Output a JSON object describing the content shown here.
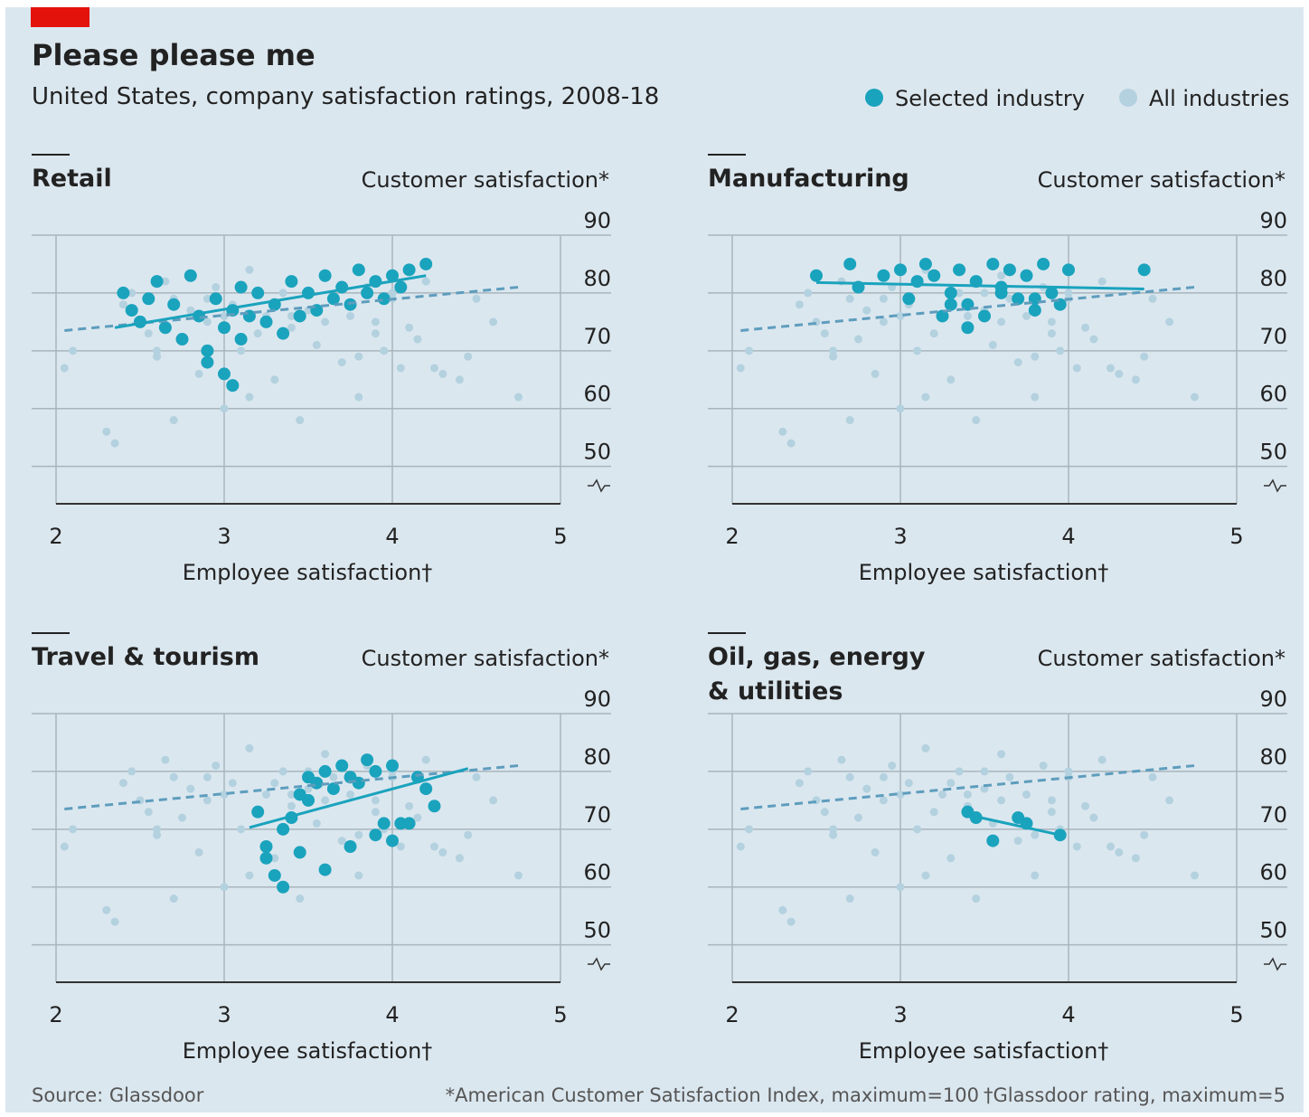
{
  "header": {
    "title": "Please please me",
    "subtitle": "United States, company satisfaction ratings, 2008-18"
  },
  "legend": [
    {
      "name": "Selected industry",
      "color": "#1aa3bd"
    },
    {
      "name": "All industries",
      "color": "#b3d1df"
    }
  ],
  "chart_data": [
    {
      "type": "scatter",
      "title_lines": [
        "Retail"
      ],
      "y_axis_label": "Customer satisfaction*",
      "x_axis_label": "Employee satisfaction†",
      "xlim": [
        2,
        5
      ],
      "xticks": [
        2,
        3,
        4,
        5
      ],
      "ylim": [
        44,
        90
      ],
      "yticks": [
        50,
        60,
        70,
        80,
        90
      ],
      "series": [
        {
          "color": "#b3d1df",
          "x": [
            2.05,
            2.1,
            2.35,
            2.4,
            2.45,
            2.5,
            2.55,
            2.6,
            2.65,
            2.7,
            2.75,
            2.8,
            2.85,
            2.9,
            2.95,
            3.0,
            3.05,
            3.1,
            3.15,
            3.2,
            3.25,
            3.3,
            3.35,
            3.4,
            3.45,
            3.5,
            3.55,
            3.6,
            3.65,
            3.7,
            3.75,
            3.8,
            3.85,
            3.9,
            3.95,
            4.0,
            4.05,
            4.1,
            4.15,
            4.2,
            4.3,
            4.4,
            4.45,
            4.5,
            4.6,
            4.75,
            2.3,
            2.9,
            3.0,
            3.3,
            3.6,
            3.9,
            3.15,
            3.5,
            2.7,
            3.8,
            4.25,
            2.6,
            3.4,
            4.0
          ],
          "values": [
            67,
            70,
            54,
            78,
            80,
            75,
            73,
            69,
            82,
            79,
            72,
            77,
            66,
            75,
            81,
            60,
            78,
            70,
            84,
            73,
            76,
            65,
            80,
            74,
            58,
            77,
            71,
            83,
            79,
            68,
            76,
            62,
            81,
            75,
            70,
            79,
            67,
            74,
            72,
            82,
            66,
            65,
            69,
            79,
            75,
            62,
            56,
            79,
            76,
            78,
            75,
            73,
            62,
            80,
            58,
            69,
            67,
            70,
            76,
            80
          ]
        },
        {
          "color": "#1aa3bd",
          "x": [
            2.4,
            2.45,
            2.5,
            2.55,
            2.6,
            2.65,
            2.7,
            2.75,
            2.8,
            2.85,
            2.9,
            2.95,
            3.0,
            3.0,
            3.05,
            3.1,
            3.1,
            3.15,
            3.2,
            3.25,
            3.3,
            3.35,
            3.4,
            3.45,
            3.5,
            3.55,
            3.6,
            3.65,
            3.7,
            3.75,
            3.8,
            3.85,
            3.9,
            3.95,
            4.0,
            4.05,
            4.1,
            4.2,
            2.9,
            3.05
          ],
          "values": [
            80,
            77,
            75,
            79,
            82,
            74,
            78,
            72,
            83,
            76,
            70,
            79,
            74,
            66,
            77,
            81,
            72,
            76,
            80,
            75,
            78,
            73,
            82,
            76,
            80,
            77,
            83,
            79,
            81,
            78,
            84,
            80,
            82,
            79,
            83,
            81,
            84,
            85,
            68,
            64
          ]
        }
      ],
      "trend_lines": [
        {
          "color": "#5e9dbd",
          "dashed": true,
          "x": [
            2.05,
            4.75
          ],
          "values": [
            73.5,
            81
          ]
        },
        {
          "color": "#1aa3bd",
          "dashed": false,
          "x": [
            2.35,
            4.2
          ],
          "values": [
            74,
            83
          ]
        }
      ]
    },
    {
      "type": "scatter",
      "title_lines": [
        "Manufacturing"
      ],
      "y_axis_label": "Customer satisfaction*",
      "x_axis_label": "Employee satisfaction†",
      "xlim": [
        2,
        5
      ],
      "xticks": [
        2,
        3,
        4,
        5
      ],
      "ylim": [
        44,
        90
      ],
      "yticks": [
        50,
        60,
        70,
        80,
        90
      ],
      "series": [
        {
          "color": "#b3d1df",
          "x": [
            2.05,
            2.1,
            2.35,
            2.4,
            2.45,
            2.5,
            2.55,
            2.6,
            2.65,
            2.7,
            2.75,
            2.8,
            2.85,
            2.9,
            2.95,
            3.0,
            3.05,
            3.1,
            3.15,
            3.2,
            3.25,
            3.3,
            3.35,
            3.4,
            3.45,
            3.5,
            3.55,
            3.6,
            3.65,
            3.7,
            3.75,
            3.8,
            3.85,
            3.9,
            3.95,
            4.0,
            4.05,
            4.1,
            4.15,
            4.2,
            4.3,
            4.4,
            4.45,
            4.5,
            4.6,
            4.75,
            2.3,
            2.9,
            3.0,
            3.3,
            3.6,
            3.9,
            3.15,
            3.5,
            2.7,
            3.8,
            4.25,
            2.6,
            3.4,
            4.0
          ],
          "values": [
            67,
            70,
            54,
            78,
            80,
            75,
            73,
            69,
            82,
            79,
            72,
            77,
            66,
            75,
            81,
            60,
            78,
            70,
            84,
            73,
            76,
            65,
            80,
            74,
            58,
            77,
            71,
            83,
            79,
            68,
            76,
            62,
            81,
            75,
            70,
            79,
            67,
            74,
            72,
            82,
            66,
            65,
            69,
            79,
            75,
            62,
            56,
            79,
            76,
            78,
            75,
            73,
            62,
            80,
            58,
            69,
            67,
            70,
            76,
            80
          ]
        },
        {
          "color": "#1aa3bd",
          "x": [
            2.5,
            2.7,
            2.75,
            2.9,
            3.0,
            3.05,
            3.1,
            3.15,
            3.2,
            3.3,
            3.35,
            3.4,
            3.45,
            3.5,
            3.55,
            3.6,
            3.65,
            3.7,
            3.75,
            3.8,
            3.85,
            3.9,
            3.95,
            4.0,
            3.3,
            3.4,
            3.6,
            3.8,
            4.45,
            3.25
          ],
          "values": [
            83,
            85,
            81,
            83,
            84,
            79,
            82,
            85,
            83,
            80,
            84,
            78,
            82,
            76,
            85,
            81,
            84,
            79,
            83,
            77,
            85,
            80,
            78,
            84,
            78,
            74,
            80,
            79,
            84,
            76
          ]
        }
      ],
      "trend_lines": [
        {
          "color": "#5e9dbd",
          "dashed": true,
          "x": [
            2.05,
            4.75
          ],
          "values": [
            73.5,
            81
          ]
        },
        {
          "color": "#1aa3bd",
          "dashed": false,
          "x": [
            2.5,
            4.45
          ],
          "values": [
            81.8,
            80.7
          ]
        }
      ]
    },
    {
      "type": "scatter",
      "title_lines": [
        "Travel & tourism"
      ],
      "y_axis_label": "Customer satisfaction*",
      "x_axis_label": "Employee satisfaction†",
      "xlim": [
        2,
        5
      ],
      "xticks": [
        2,
        3,
        4,
        5
      ],
      "ylim": [
        44,
        90
      ],
      "yticks": [
        50,
        60,
        70,
        80,
        90
      ],
      "series": [
        {
          "color": "#b3d1df",
          "x": [
            2.05,
            2.1,
            2.35,
            2.4,
            2.45,
            2.5,
            2.55,
            2.6,
            2.65,
            2.7,
            2.75,
            2.8,
            2.85,
            2.9,
            2.95,
            3.0,
            3.05,
            3.1,
            3.15,
            3.2,
            3.25,
            3.3,
            3.35,
            3.4,
            3.45,
            3.5,
            3.55,
            3.6,
            3.65,
            3.7,
            3.75,
            3.8,
            3.85,
            3.9,
            3.95,
            4.0,
            4.05,
            4.1,
            4.15,
            4.2,
            4.3,
            4.4,
            4.45,
            4.5,
            4.6,
            4.75,
            2.3,
            2.9,
            3.0,
            3.3,
            3.6,
            3.9,
            3.15,
            3.5,
            2.7,
            3.8,
            4.25,
            2.6,
            3.4,
            4.0
          ],
          "values": [
            67,
            70,
            54,
            78,
            80,
            75,
            73,
            69,
            82,
            79,
            72,
            77,
            66,
            75,
            81,
            60,
            78,
            70,
            84,
            73,
            76,
            65,
            80,
            74,
            58,
            77,
            71,
            83,
            79,
            68,
            76,
            62,
            81,
            75,
            70,
            79,
            67,
            74,
            72,
            82,
            66,
            65,
            69,
            79,
            75,
            62,
            56,
            79,
            76,
            78,
            75,
            73,
            62,
            80,
            58,
            69,
            67,
            70,
            76,
            80
          ]
        },
        {
          "color": "#1aa3bd",
          "x": [
            3.2,
            3.25,
            3.3,
            3.35,
            3.4,
            3.45,
            3.5,
            3.55,
            3.6,
            3.65,
            3.7,
            3.75,
            3.8,
            3.85,
            3.9,
            3.95,
            4.0,
            4.05,
            4.1,
            4.15,
            4.25,
            4.2,
            3.35,
            3.45,
            3.6,
            3.75,
            3.9,
            4.0,
            3.25,
            3.5
          ],
          "values": [
            73,
            65,
            62,
            60,
            72,
            76,
            79,
            78,
            80,
            77,
            81,
            79,
            78,
            82,
            80,
            71,
            81,
            71,
            71,
            79,
            74,
            77,
            70,
            66,
            63,
            67,
            69,
            68,
            67,
            75
          ]
        }
      ],
      "trend_lines": [
        {
          "color": "#5e9dbd",
          "dashed": true,
          "x": [
            2.05,
            4.75
          ],
          "values": [
            73.5,
            81
          ]
        },
        {
          "color": "#1aa3bd",
          "dashed": false,
          "x": [
            3.15,
            4.45
          ],
          "values": [
            70.3,
            80.5
          ]
        }
      ]
    },
    {
      "type": "scatter",
      "title_lines": [
        "Oil, gas, energy",
        "& utilities"
      ],
      "y_axis_label": "Customer satisfaction*",
      "x_axis_label": "Employee satisfaction†",
      "xlim": [
        2,
        5
      ],
      "xticks": [
        2,
        3,
        4,
        5
      ],
      "ylim": [
        44,
        90
      ],
      "yticks": [
        50,
        60,
        70,
        80,
        90
      ],
      "series": [
        {
          "color": "#b3d1df",
          "x": [
            2.05,
            2.1,
            2.35,
            2.4,
            2.45,
            2.5,
            2.55,
            2.6,
            2.65,
            2.7,
            2.75,
            2.8,
            2.85,
            2.9,
            2.95,
            3.0,
            3.05,
            3.1,
            3.15,
            3.2,
            3.25,
            3.3,
            3.35,
            3.4,
            3.45,
            3.5,
            3.55,
            3.6,
            3.65,
            3.7,
            3.75,
            3.8,
            3.85,
            3.9,
            3.95,
            4.0,
            4.05,
            4.1,
            4.15,
            4.2,
            4.3,
            4.4,
            4.45,
            4.5,
            4.6,
            4.75,
            2.3,
            2.9,
            3.0,
            3.3,
            3.6,
            3.9,
            3.15,
            3.5,
            2.7,
            3.8,
            4.25,
            2.6,
            3.4,
            4.0
          ],
          "values": [
            67,
            70,
            54,
            78,
            80,
            75,
            73,
            69,
            82,
            79,
            72,
            77,
            66,
            75,
            81,
            60,
            78,
            70,
            84,
            73,
            76,
            65,
            80,
            74,
            58,
            77,
            71,
            83,
            79,
            68,
            76,
            62,
            81,
            75,
            70,
            79,
            67,
            74,
            72,
            82,
            66,
            65,
            69,
            79,
            75,
            62,
            56,
            79,
            76,
            78,
            75,
            73,
            62,
            80,
            58,
            69,
            67,
            70,
            76,
            80
          ]
        },
        {
          "color": "#1aa3bd",
          "x": [
            3.4,
            3.45,
            3.55,
            3.7,
            3.75,
            3.95
          ],
          "values": [
            73,
            72,
            68,
            72,
            71,
            69
          ]
        }
      ],
      "trend_lines": [
        {
          "color": "#5e9dbd",
          "dashed": true,
          "x": [
            2.05,
            4.75
          ],
          "values": [
            73.5,
            81
          ]
        },
        {
          "color": "#1aa3bd",
          "dashed": false,
          "x": [
            3.4,
            3.95
          ],
          "values": [
            72.5,
            69
          ]
        }
      ]
    }
  ],
  "footer": {
    "source": "Source: Glassdoor",
    "note1": "*American Customer Satisfaction Index, maximum=100",
    "note2": "†Glassdoor rating, maximum=5"
  }
}
